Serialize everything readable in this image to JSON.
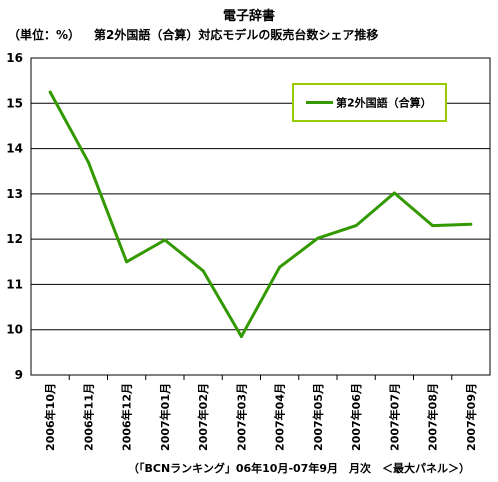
{
  "title": "電子辞書",
  "unit": "（単位：%）",
  "subtitle": "第2外国語（合算）対応モデルの販売台数シェア推移",
  "source": "（「BCNランキング」06年10月-07年9月　月次　＜最大パネル＞）",
  "chart_data": {
    "type": "line",
    "title": "電子辞書",
    "ylabel": "（単位：%）",
    "ylim": [
      9,
      16
    ],
    "yticks": [
      9,
      10,
      11,
      12,
      13,
      14,
      15,
      16
    ],
    "grid": true,
    "legend_position": "top-right",
    "categories": [
      "2006年10月",
      "2006年11月",
      "2006年12月",
      "2007年01月",
      "2007年02月",
      "2007年03月",
      "2007年04月",
      "2007年05月",
      "2007年06月",
      "2007年07月",
      "2007年08月",
      "2007年09月"
    ],
    "series": [
      {
        "name": "第2外国語（合算）",
        "color": "#339900",
        "values": [
          15.25,
          13.7,
          11.5,
          11.98,
          11.3,
          9.85,
          11.38,
          12.02,
          12.3,
          13.02,
          12.3,
          12.33
        ]
      }
    ]
  },
  "colors": {
    "plot_bg": "#ffffff",
    "plot_border": "#000000",
    "legend_border": "#99cc00",
    "gridline": "#000000"
  }
}
